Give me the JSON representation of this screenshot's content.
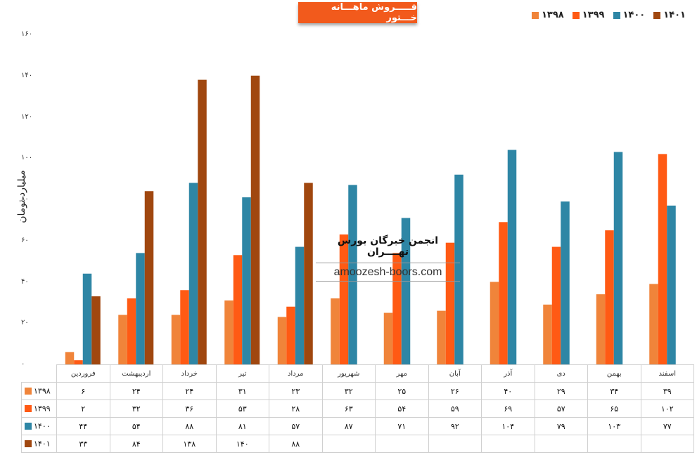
{
  "chart_data": {
    "type": "bar",
    "title": "فـــــروش ماهـــانه خـــتور",
    "ylabel": "میلیارد تومان",
    "ylim": [
      0,
      160
    ],
    "yticks": [
      "۰",
      "۲۰",
      "۴۰",
      "۶۰",
      "۸۰",
      "۱۰۰",
      "۱۲۰",
      "۱۴۰",
      "۱۶۰"
    ],
    "categories": [
      "فروردین",
      "اردیبهشت",
      "خرداد",
      "تیر",
      "مرداد",
      "شهریور",
      "مهر",
      "آبان",
      "آذر",
      "دی",
      "بهمن",
      "اسفند"
    ],
    "legend_position": "top-right",
    "grid": false,
    "series": [
      {
        "name": "۱۳۹۸",
        "color": "#f0843a",
        "values": [
          6,
          24,
          24,
          31,
          23,
          32,
          25,
          26,
          40,
          29,
          34,
          39
        ],
        "labels": [
          "۶",
          "۲۴",
          "۲۴",
          "۳۱",
          "۲۳",
          "۳۲",
          "۲۵",
          "۲۶",
          "۴۰",
          "۲۹",
          "۳۴",
          "۳۹"
        ]
      },
      {
        "name": "۱۳۹۹",
        "color": "#ff5a14",
        "values": [
          2,
          32,
          36,
          53,
          28,
          63,
          54,
          59,
          69,
          57,
          65,
          102
        ],
        "labels": [
          "۲",
          "۳۲",
          "۳۶",
          "۵۳",
          "۲۸",
          "۶۳",
          "۵۴",
          "۵۹",
          "۶۹",
          "۵۷",
          "۶۵",
          "۱۰۲"
        ]
      },
      {
        "name": "۱۴۰۰",
        "color": "#2e86a5",
        "values": [
          44,
          54,
          88,
          81,
          57,
          87,
          71,
          92,
          104,
          79,
          103,
          77
        ],
        "labels": [
          "۴۴",
          "۵۴",
          "۸۸",
          "۸۱",
          "۵۷",
          "۸۷",
          "۷۱",
          "۹۲",
          "۱۰۴",
          "۷۹",
          "۱۰۳",
          "۷۷"
        ]
      },
      {
        "name": "۱۴۰۱",
        "color": "#a0470f",
        "values": [
          33,
          84,
          138,
          140,
          88,
          null,
          null,
          null,
          null,
          null,
          null,
          null
        ],
        "labels": [
          "۳۳",
          "۸۴",
          "۱۳۸",
          "۱۴۰",
          "۸۸",
          "",
          "",
          "",
          "",
          "",
          "",
          ""
        ]
      }
    ]
  },
  "watermark": {
    "fa": "انجمن خبرگان بورس تهــــران",
    "en": "amoozesh-boors.com"
  }
}
